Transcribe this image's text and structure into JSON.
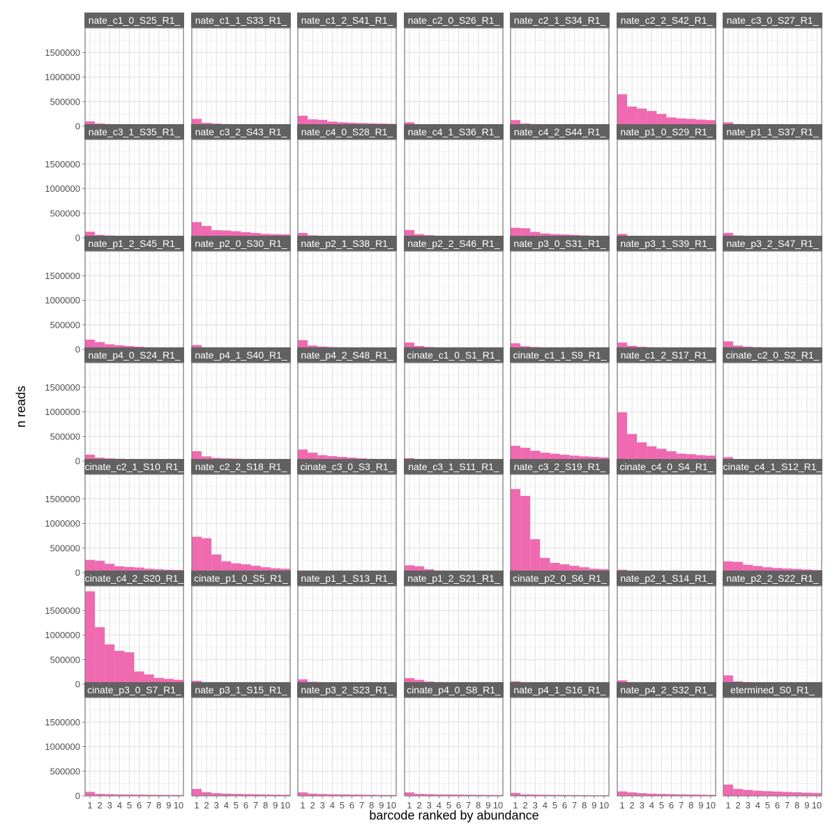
{
  "chart_data": {
    "type": "bar",
    "xlabel": "barcode ranked by abundance",
    "ylabel": "n reads",
    "ylim": [
      0,
      2000000
    ],
    "y_ticks": [
      0,
      500000,
      1000000,
      1500000
    ],
    "y_tick_labels": [
      "0",
      "500000",
      "1000000",
      "1500000"
    ],
    "x_ticks": [
      1,
      2,
      3,
      4,
      5,
      6,
      7,
      8,
      9,
      10
    ],
    "x_tick_labels": [
      "1",
      "2",
      "3",
      "4",
      "5",
      "6",
      "7",
      "8",
      "9",
      "10"
    ],
    "bar_color": "#ee5aa8",
    "grid": true,
    "layout": {
      "columns": 7,
      "rows": 7
    },
    "panels": [
      {
        "label": "nate_c1_0_S25_R1_",
        "values": [
          100000,
          55000,
          45000,
          38000,
          33000,
          30000,
          25000,
          20000,
          15000,
          12000
        ]
      },
      {
        "label": "nate_c1_1_S33_R1_",
        "values": [
          150000,
          70000,
          55000,
          45000,
          40000,
          35000,
          30000,
          25000,
          20000,
          15000
        ]
      },
      {
        "label": "nate_c1_2_S41_R1_",
        "values": [
          215000,
          140000,
          130000,
          95000,
          80000,
          72000,
          65000,
          60000,
          55000,
          50000
        ]
      },
      {
        "label": "nate_c2_0_S26_R1_",
        "values": [
          80000,
          40000,
          35000,
          30000,
          28000,
          26000,
          24000,
          22000,
          20000,
          18000
        ]
      },
      {
        "label": "nate_c2_1_S34_R1_",
        "values": [
          125000,
          55000,
          45000,
          40000,
          35000,
          32000,
          28000,
          25000,
          22000,
          20000
        ]
      },
      {
        "label": "nate_c2_2_S42_R1_",
        "values": [
          650000,
          400000,
          360000,
          310000,
          250000,
          180000,
          160000,
          150000,
          135000,
          125000
        ]
      },
      {
        "label": "nate_c3_0_S27_R1_",
        "values": [
          80000,
          45000,
          38000,
          33000,
          30000,
          28000,
          25000,
          22000,
          20000,
          18000
        ]
      },
      {
        "label": "nate_c3_1_S35_R1_",
        "values": [
          125000,
          60000,
          48000,
          42000,
          38000,
          34000,
          30000,
          27000,
          24000,
          22000
        ]
      },
      {
        "label": "nate_c3_2_S43_R1_",
        "values": [
          320000,
          240000,
          155000,
          150000,
          135000,
          115000,
          100000,
          80000,
          75000,
          70000
        ]
      },
      {
        "label": "nate_c4_0_S28_R1_",
        "values": [
          100000,
          50000,
          42000,
          38000,
          34000,
          30000,
          27000,
          24000,
          22000,
          20000
        ]
      },
      {
        "label": "nate_c4_1_S36_R1_",
        "values": [
          160000,
          75000,
          55000,
          45000,
          40000,
          36000,
          32000,
          28000,
          25000,
          22000
        ]
      },
      {
        "label": "nate_c4_2_S44_R1_",
        "values": [
          205000,
          195000,
          120000,
          90000,
          75000,
          68000,
          60000,
          50000,
          40000,
          35000
        ]
      },
      {
        "label": "nate_p1_0_S29_R1_",
        "values": [
          80000,
          40000,
          35000,
          32000,
          30000,
          28000,
          25000,
          23000,
          21000,
          20000
        ]
      },
      {
        "label": "nate_p1_1_S37_R1_",
        "values": [
          100000,
          50000,
          42000,
          37000,
          33000,
          30000,
          27000,
          24000,
          22000,
          20000
        ]
      },
      {
        "label": "nate_p1_2_S45_R1_",
        "values": [
          200000,
          150000,
          105000,
          85000,
          70000,
          55000,
          45000,
          40000,
          35000,
          30000
        ]
      },
      {
        "label": "nate_p2_0_S30_R1_",
        "values": [
          90000,
          40000,
          35000,
          30000,
          28000,
          26000,
          24000,
          22000,
          20000,
          18000
        ]
      },
      {
        "label": "nate_p2_1_S38_R1_",
        "values": [
          190000,
          80000,
          60000,
          50000,
          45000,
          40000,
          35000,
          30000,
          27000,
          25000
        ]
      },
      {
        "label": "nate_p2_2_S46_R1_",
        "values": [
          140000,
          70000,
          50000,
          42000,
          38000,
          34000,
          30000,
          27000,
          24000,
          22000
        ]
      },
      {
        "label": "nate_p3_0_S31_R1_",
        "values": [
          125000,
          65000,
          50000,
          42000,
          38000,
          34000,
          30000,
          27000,
          24000,
          22000
        ]
      },
      {
        "label": "nate_p3_1_S39_R1_",
        "values": [
          140000,
          75000,
          55000,
          45000,
          40000,
          36000,
          32000,
          28000,
          25000,
          22000
        ]
      },
      {
        "label": "nate_p3_2_S47_R1_",
        "values": [
          165000,
          80000,
          58000,
          48000,
          42000,
          38000,
          34000,
          30000,
          27000,
          24000
        ]
      },
      {
        "label": "nate_p4_0_S24_R1_",
        "values": [
          130000,
          70000,
          55000,
          48000,
          42000,
          38000,
          34000,
          30000,
          27000,
          24000
        ]
      },
      {
        "label": "nate_p4_1_S40_R1_",
        "values": [
          200000,
          95000,
          65000,
          55000,
          48000,
          42000,
          38000,
          34000,
          30000,
          27000
        ]
      },
      {
        "label": "nate_p4_2_S48_R1_",
        "values": [
          235000,
          170000,
          120000,
          100000,
          85000,
          70000,
          55000,
          45000,
          38000,
          30000
        ]
      },
      {
        "label": "cinate_c1_0_S1_R1_",
        "values": [
          60000,
          30000,
          26000,
          23000,
          21000,
          19000,
          17000,
          15000,
          13000,
          12000
        ]
      },
      {
        "label": "cinate_c1_1_S9_R1_",
        "values": [
          310000,
          270000,
          210000,
          170000,
          150000,
          130000,
          110000,
          95000,
          85000,
          75000
        ]
      },
      {
        "label": "nate_c1_2_S17_R1_",
        "values": [
          990000,
          550000,
          380000,
          300000,
          250000,
          200000,
          150000,
          140000,
          120000,
          110000
        ]
      },
      {
        "label": "cinate_c2_0_S2_R1_",
        "values": [
          80000,
          30000,
          25000,
          22000,
          20000,
          18000,
          16000,
          14000,
          12000,
          10000
        ]
      },
      {
        "label": "cinate_c2_1_S10_R1_",
        "values": [
          260000,
          240000,
          180000,
          130000,
          115000,
          105000,
          80000,
          70000,
          60000,
          55000
        ]
      },
      {
        "label": "nate_c2_2_S18_R1_",
        "values": [
          730000,
          700000,
          370000,
          230000,
          190000,
          170000,
          140000,
          110000,
          90000,
          80000
        ]
      },
      {
        "label": "cinate_c3_0_S3_R1_",
        "values": [
          20000,
          8000,
          5000,
          4000,
          3000,
          2500,
          2000,
          1800,
          1500,
          1200
        ]
      },
      {
        "label": "nate_c3_1_S11_R1_",
        "values": [
          150000,
          130000,
          70000,
          45000,
          40000,
          36000,
          32000,
          28000,
          25000,
          22000
        ]
      },
      {
        "label": "nate_c3_2_S19_R1_",
        "values": [
          1700000,
          1560000,
          680000,
          300000,
          200000,
          170000,
          140000,
          110000,
          80000,
          70000
        ]
      },
      {
        "label": "cinate_c4_0_S4_R1_",
        "values": [
          60000,
          30000,
          25000,
          22000,
          20000,
          18000,
          16000,
          14000,
          12000,
          10000
        ]
      },
      {
        "label": "cinate_c4_1_S12_R1_",
        "values": [
          230000,
          220000,
          160000,
          135000,
          110000,
          95000,
          85000,
          75000,
          65000,
          55000
        ]
      },
      {
        "label": "cinate_c4_2_S20_R1_",
        "values": [
          1890000,
          1160000,
          810000,
          680000,
          650000,
          260000,
          200000,
          130000,
          110000,
          90000
        ]
      },
      {
        "label": "cinate_p1_0_S5_R1_",
        "values": [
          70000,
          35000,
          30000,
          26000,
          23000,
          21000,
          19000,
          17000,
          15000,
          13000
        ]
      },
      {
        "label": "nate_p1_1_S13_R1_",
        "values": [
          100000,
          50000,
          42000,
          37000,
          33000,
          30000,
          27000,
          24000,
          22000,
          20000
        ]
      },
      {
        "label": "nate_p1_2_S21_R1_",
        "values": [
          125000,
          90000,
          55000,
          45000,
          40000,
          36000,
          32000,
          28000,
          25000,
          22000
        ]
      },
      {
        "label": "cinate_p2_0_S6_R1_",
        "values": [
          60000,
          35000,
          30000,
          26000,
          23000,
          21000,
          19000,
          17000,
          15000,
          13000
        ]
      },
      {
        "label": "nate_p2_1_S14_R1_",
        "values": [
          80000,
          45000,
          38000,
          33000,
          30000,
          28000,
          25000,
          22000,
          20000,
          18000
        ]
      },
      {
        "label": "nate_p2_2_S22_R1_",
        "values": [
          180000,
          60000,
          45000,
          40000,
          36000,
          32000,
          28000,
          25000,
          22000,
          20000
        ]
      },
      {
        "label": "cinate_p3_0_S7_R1_",
        "values": [
          80000,
          40000,
          35000,
          30000,
          28000,
          26000,
          24000,
          22000,
          20000,
          18000
        ]
      },
      {
        "label": "nate_p3_1_S15_R1_",
        "values": [
          140000,
          75000,
          55000,
          45000,
          40000,
          36000,
          32000,
          28000,
          25000,
          22000
        ]
      },
      {
        "label": "nate_p3_2_S23_R1_",
        "values": [
          70000,
          45000,
          38000,
          33000,
          30000,
          28000,
          25000,
          22000,
          20000,
          18000
        ]
      },
      {
        "label": "cinate_p4_0_S8_R1_",
        "values": [
          70000,
          40000,
          35000,
          30000,
          28000,
          26000,
          24000,
          22000,
          20000,
          18000
        ]
      },
      {
        "label": "nate_p4_1_S16_R1_",
        "values": [
          60000,
          30000,
          26000,
          23000,
          21000,
          19000,
          17000,
          15000,
          13000,
          12000
        ]
      },
      {
        "label": "nate_p4_2_S32_R1_",
        "values": [
          90000,
          70000,
          55000,
          45000,
          40000,
          36000,
          32000,
          28000,
          25000,
          22000
        ]
      },
      {
        "label": "etermined_S0_R1_",
        "values": [
          230000,
          140000,
          120000,
          105000,
          95000,
          88000,
          80000,
          72000,
          65000,
          60000
        ]
      }
    ]
  }
}
